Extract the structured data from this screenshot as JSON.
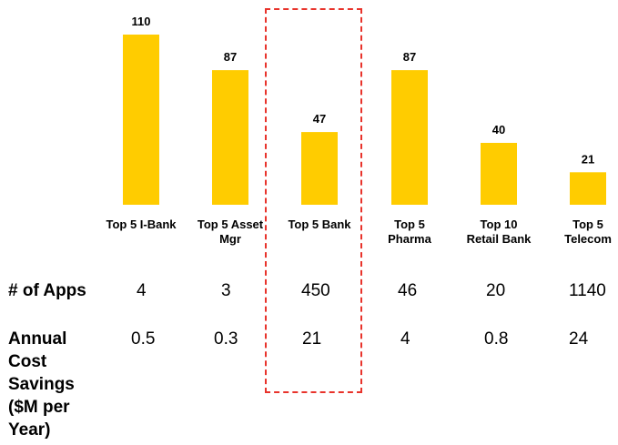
{
  "chart_data": {
    "type": "bar",
    "categories": [
      "Top 5 I-Bank",
      "Top 5 Asset Mgr",
      "Top 5 Bank",
      "Top 5 Pharma",
      "Top 10 Retail Bank",
      "Top 5 Telecom"
    ],
    "category_labels": [
      "Top 5 I-Bank",
      "Top 5 Asset\nMgr",
      "Top 5 Bank",
      "Top 5\nPharma",
      "Top 10\nRetail Bank",
      "Top 5\nTelecom"
    ],
    "values": [
      110,
      87,
      47,
      87,
      40,
      21
    ],
    "data_labels": [
      "110",
      "87",
      "47",
      "87",
      "40",
      "21"
    ],
    "ylim": [
      0,
      125
    ],
    "title": "",
    "xlabel": "",
    "ylabel": "",
    "grid": false,
    "bar_color": "#FFCC00",
    "highlighted_category": "Top 5 Bank",
    "highlight_color": "#E8332B"
  },
  "table": {
    "rows": [
      {
        "header": "# of Apps",
        "values": [
          "4",
          "3",
          "450",
          "46",
          "20",
          "1140"
        ]
      },
      {
        "header": "Annual\nCost\nSavings\n($M per\nYear)",
        "values": [
          "0.5",
          "0.3",
          "21",
          "4",
          "0.8",
          "24"
        ]
      }
    ]
  }
}
